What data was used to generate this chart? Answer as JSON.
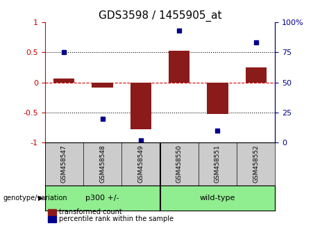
{
  "title": "GDS3598 / 1455905_at",
  "samples": [
    "GSM458547",
    "GSM458548",
    "GSM458549",
    "GSM458550",
    "GSM458551",
    "GSM458552"
  ],
  "red_bars": [
    0.07,
    -0.08,
    -0.78,
    0.52,
    -0.52,
    0.25
  ],
  "blue_dots": [
    75,
    20,
    2,
    93,
    10,
    83
  ],
  "groups": [
    {
      "label": "p300 +/-",
      "start": 0,
      "end": 3,
      "color": "#90ee90"
    },
    {
      "label": "wild-type",
      "start": 3,
      "end": 6,
      "color": "#90ee90"
    }
  ],
  "group_label": "genotype/variation",
  "ylim_left": [
    -1,
    1
  ],
  "ylim_right": [
    0,
    100
  ],
  "yticks_left": [
    -1,
    -0.5,
    0,
    0.5,
    1
  ],
  "yticks_left_labels": [
    "-1",
    "-0.5",
    "0",
    "0.5",
    "1"
  ],
  "yticks_right": [
    0,
    25,
    50,
    75,
    100
  ],
  "yticks_right_labels": [
    "0",
    "25",
    "50",
    "75",
    "100%"
  ],
  "bar_color": "#8B1A1A",
  "dot_color": "#00008B",
  "zero_line_color": "#cc0000",
  "grid_color": "#000000",
  "bg_color": "#ffffff",
  "legend_red": "transformed count",
  "legend_blue": "percentile rank within the sample",
  "title_fontsize": 11,
  "axis_fontsize": 8
}
